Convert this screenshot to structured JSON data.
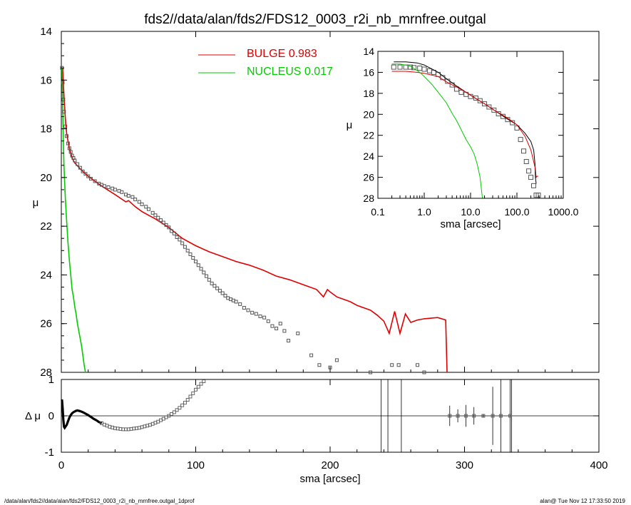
{
  "title": "fds2//data/alan/fds2/FDS12_0003_r2i_nb_mrnfree.outgal",
  "footer": {
    "left": "/data/alan/fds2//data/alan/fds2/FDS12_0003_r2i_nb_mrnfree.outgal_1dprof",
    "right": "alan@  Tue Nov 12 17:33:50 2019"
  },
  "colors": {
    "bulge": "#e00000",
    "nucleus": "#00cc00",
    "data": "#555555",
    "frame": "#000000"
  },
  "chart_data": [
    {
      "type": "line",
      "ylabel": "μ",
      "xlim": [
        0,
        400
      ],
      "ylim": [
        28,
        14
      ],
      "yticks": [
        "14",
        "16",
        "18",
        "20",
        "22",
        "24",
        "26",
        "28"
      ],
      "legend": {
        "placement": "top-center",
        "entries": [
          {
            "label": "BULGE  0.983",
            "color": "#e00000"
          },
          {
            "label": "NUCLEUS  0.017",
            "color": "#00cc00"
          }
        ]
      },
      "series": [
        {
          "name": "BULGE  0.983",
          "style": "line",
          "x": [
            1,
            2,
            3,
            4,
            6,
            8,
            10,
            15,
            20,
            25,
            30,
            40,
            48,
            50,
            55,
            60,
            70,
            80,
            90,
            100,
            110,
            120,
            130,
            140,
            150,
            160,
            170,
            180,
            190,
            195,
            198,
            200,
            205,
            210,
            215,
            220,
            225,
            230,
            235,
            240,
            244,
            248,
            252,
            256,
            260,
            265,
            270,
            280,
            286,
            287
          ],
          "y": [
            15.5,
            16.7,
            17.6,
            18.2,
            18.8,
            19.2,
            19.4,
            19.7,
            19.95,
            20.15,
            20.35,
            20.7,
            21.0,
            20.95,
            21.2,
            21.4,
            21.7,
            22.05,
            22.5,
            22.8,
            23.05,
            23.25,
            23.45,
            23.6,
            23.8,
            24.05,
            24.2,
            24.4,
            24.6,
            24.9,
            24.6,
            24.7,
            24.9,
            25.0,
            25.1,
            25.25,
            25.35,
            25.45,
            25.65,
            25.9,
            26.4,
            25.5,
            26.4,
            25.6,
            25.95,
            25.85,
            25.8,
            25.75,
            25.85,
            28
          ]
        },
        {
          "name": "NUCLEUS  0.017",
          "style": "line",
          "x": [
            0.5,
            1,
            1.5,
            2,
            3,
            4,
            5,
            6,
            7,
            8,
            9,
            10,
            11,
            12,
            13,
            14,
            15,
            16,
            17,
            18
          ],
          "y": [
            15.5,
            17.0,
            18.5,
            19.6,
            20.9,
            21.8,
            22.7,
            23.4,
            24.0,
            24.6,
            24.9,
            25.3,
            25.6,
            26.0,
            26.3,
            26.6,
            26.9,
            27.3,
            27.7,
            28
          ]
        },
        {
          "name": "",
          "style": "markers",
          "x": [
            0.5,
            1,
            1.5,
            2,
            3,
            4,
            5,
            6,
            7,
            8,
            9,
            10,
            12,
            14,
            16,
            18,
            20,
            22,
            25,
            28,
            30,
            32,
            35,
            38,
            40,
            43,
            45,
            48,
            50,
            53,
            55,
            58,
            60,
            63,
            65,
            68,
            70,
            72,
            74,
            76,
            78,
            80,
            82,
            84,
            86,
            88,
            90,
            92,
            94,
            96,
            98,
            100,
            102,
            104,
            106,
            108,
            110,
            112,
            114,
            116,
            118,
            120,
            122,
            124,
            126,
            128,
            130,
            133,
            136,
            139,
            142,
            145,
            148,
            151,
            154,
            157,
            160,
            163,
            166,
            169,
            176,
            186,
            192,
            200,
            205,
            230,
            246,
            251,
            265,
            270
          ],
          "y": [
            15.5,
            16.1,
            16.8,
            17.3,
            17.9,
            18.3,
            18.6,
            18.8,
            18.95,
            19.1,
            19.2,
            19.3,
            19.45,
            19.6,
            19.75,
            19.85,
            19.95,
            20.05,
            20.15,
            20.25,
            20.3,
            20.35,
            20.4,
            20.45,
            20.5,
            20.55,
            20.6,
            20.7,
            20.75,
            20.8,
            20.9,
            21.0,
            21.1,
            21.2,
            21.3,
            21.45,
            21.55,
            21.65,
            21.75,
            21.85,
            21.95,
            22.05,
            22.2,
            22.3,
            22.45,
            22.55,
            22.7,
            22.85,
            23.0,
            23.15,
            23.3,
            23.45,
            23.6,
            23.75,
            23.9,
            24.05,
            24.2,
            24.35,
            24.45,
            24.55,
            24.65,
            24.75,
            24.85,
            24.95,
            25.0,
            25.05,
            25.1,
            25.2,
            25.35,
            25.45,
            25.55,
            25.6,
            25.7,
            25.75,
            25.9,
            26.1,
            26.2,
            26.0,
            26.3,
            26.7,
            26.4,
            27.3,
            27.7,
            27.8,
            27.5,
            28.0,
            27.7,
            27.7,
            27.7,
            28.0
          ]
        }
      ]
    },
    {
      "type": "line",
      "ylabel": "Δ μ",
      "xlabel": "sma [arcsec]",
      "xlim": [
        0,
        400
      ],
      "ylim": [
        -1,
        1
      ],
      "xticks": [
        "0",
        "100",
        "200",
        "300",
        "400"
      ],
      "yticks": [
        "1",
        "0",
        "-1"
      ],
      "series": [
        {
          "name": "",
          "style": "thick-line",
          "x": [
            0.5,
            1,
            1.5,
            2,
            2.5,
            3,
            4,
            5,
            6,
            7,
            8,
            9,
            10,
            11,
            12,
            13,
            14,
            16,
            18,
            20,
            22,
            24,
            26,
            28,
            30
          ],
          "y": [
            0.45,
            0.2,
            -0.1,
            -0.3,
            -0.33,
            -0.3,
            -0.25,
            -0.15,
            -0.05,
            0.02,
            0.07,
            0.1,
            0.12,
            0.14,
            0.15,
            0.14,
            0.13,
            0.1,
            0.06,
            0.02,
            -0.03,
            -0.08,
            -0.12,
            -0.17,
            -0.2
          ]
        },
        {
          "name": "",
          "style": "markers",
          "x": [
            30,
            32,
            34,
            36,
            38,
            40,
            42,
            44,
            46,
            48,
            50,
            52,
            54,
            56,
            58,
            60,
            62,
            64,
            66,
            68,
            70,
            72,
            74,
            76,
            78,
            80,
            82,
            84,
            86,
            88,
            90,
            92,
            94,
            96,
            98,
            100,
            102,
            104,
            106
          ],
          "y": [
            -0.2,
            -0.24,
            -0.27,
            -0.3,
            -0.32,
            -0.34,
            -0.35,
            -0.36,
            -0.37,
            -0.37,
            -0.37,
            -0.36,
            -0.35,
            -0.34,
            -0.33,
            -0.31,
            -0.29,
            -0.27,
            -0.25,
            -0.22,
            -0.19,
            -0.16,
            -0.12,
            -0.08,
            -0.04,
            0.0,
            0.05,
            0.1,
            0.16,
            0.22,
            0.29,
            0.36,
            0.44,
            0.53,
            0.62,
            0.72,
            0.8,
            0.88,
            0.95
          ]
        },
        {
          "name": "",
          "style": "error-bars",
          "x": [
            289,
            295,
            301,
            307,
            314,
            321,
            327,
            334
          ],
          "y": [
            0.0,
            0.0,
            0.0,
            0.0,
            0.0,
            0.0,
            0.0,
            0.0
          ],
          "err": [
            0.28,
            0.18,
            0.3,
            0.24,
            0.05,
            0.8,
            1.0,
            1.1
          ]
        }
      ],
      "vlines": [
        238,
        243,
        253,
        335
      ]
    },
    {
      "type": "line",
      "position": "inset",
      "xscale": "log",
      "xlabel": "sma [arcsec]",
      "ylabel": "μ",
      "xlim": [
        0.1,
        1000
      ],
      "ylim": [
        28,
        14
      ],
      "xticks": [
        "0.1",
        "1.0",
        "10.0",
        "100.0",
        "1000.0"
      ],
      "yticks": [
        "14",
        "16",
        "18",
        "20",
        "22",
        "24",
        "26",
        "28"
      ],
      "series": [
        {
          "name": "",
          "style": "markers",
          "x": [
            0.22,
            0.3,
            0.4,
            0.5,
            0.6,
            0.8,
            1.0,
            1.3,
            1.6,
            2.0,
            2.5,
            3.2,
            4.0,
            5.0,
            6.3,
            8.0,
            10,
            13,
            16,
            20,
            25,
            32,
            40,
            50,
            63,
            80,
            100,
            120,
            140,
            160,
            180,
            200,
            230,
            260,
            290
          ],
          "y": [
            15.5,
            15.5,
            15.5,
            15.5,
            15.55,
            15.6,
            15.7,
            15.85,
            16.0,
            16.2,
            16.5,
            16.85,
            17.2,
            17.6,
            17.9,
            18.1,
            18.3,
            18.45,
            18.7,
            19.0,
            19.3,
            19.6,
            19.95,
            20.2,
            20.5,
            20.8,
            21.3,
            22.4,
            23.5,
            24.5,
            25.4,
            26.0,
            26.8,
            27.7,
            27.7
          ]
        },
        {
          "name": "",
          "style": "line",
          "x": [
            0.22,
            0.4,
            0.7,
            1.0,
            2,
            3,
            5,
            8,
            12,
            20,
            35,
            60,
            100,
            150,
            200,
            230,
            245,
            250,
            260
          ],
          "y": [
            15.0,
            15.0,
            15.1,
            15.3,
            16.0,
            16.6,
            17.3,
            17.9,
            18.4,
            19.0,
            19.7,
            20.4,
            21.0,
            21.8,
            22.6,
            23.4,
            24.7,
            26.0,
            26.6
          ]
        },
        {
          "name": "",
          "style": "line",
          "x": [
            0.2,
            0.4,
            0.7,
            1.0,
            2,
            3,
            5,
            8,
            12,
            20,
            35,
            60,
            100,
            150,
            200,
            250,
            260,
            270,
            287
          ],
          "y": [
            15.9,
            15.9,
            16.0,
            16.1,
            16.4,
            16.9,
            17.4,
            17.9,
            18.4,
            19.0,
            19.7,
            20.3,
            21.0,
            22.1,
            23.4,
            25.2,
            26.0,
            25.9,
            25.9
          ]
        },
        {
          "name": "",
          "style": "line",
          "x": [
            0.2,
            0.3,
            0.5,
            0.8,
            1.0,
            1.5,
            2,
            3,
            4,
            5,
            6,
            8,
            10,
            12,
            14,
            16,
            17,
            18
          ],
          "y": [
            15.2,
            15.2,
            15.4,
            16.0,
            16.4,
            17.2,
            17.9,
            18.9,
            19.9,
            20.6,
            21.3,
            22.4,
            23.1,
            23.8,
            24.8,
            26.0,
            27.0,
            28.0
          ]
        }
      ]
    }
  ]
}
